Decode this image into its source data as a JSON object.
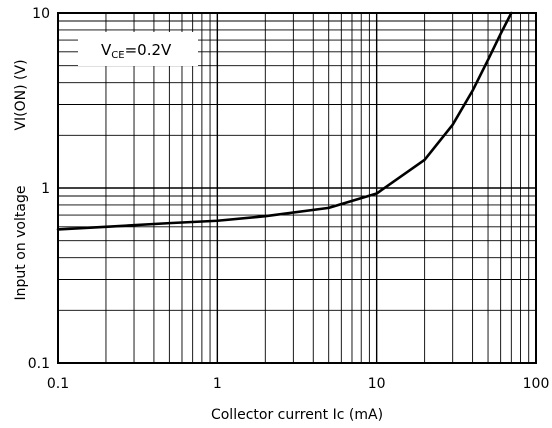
{
  "chart_data": {
    "type": "line",
    "title": "",
    "xlabel": "Collector current Ic (mA)",
    "ylabel": "Input on voltage",
    "ylabel_symbol": "VI(ON) (V)",
    "x_scale": "log",
    "y_scale": "log",
    "xlim": [
      0.1,
      100
    ],
    "ylim": [
      0.1,
      10
    ],
    "x_tick_labels": [
      "0.1",
      "1",
      "10",
      "100"
    ],
    "y_tick_labels": [
      "0.1",
      "1",
      "10"
    ],
    "grid": true,
    "legend": {
      "main": "V",
      "sub": "CE",
      "rest": "=0.2V",
      "placement": "top-left"
    },
    "series": [
      {
        "name": "VCE=0.2V",
        "color": "#000000",
        "x": [
          0.1,
          0.2,
          0.5,
          1,
          2,
          5,
          10,
          20,
          30,
          40,
          50,
          60,
          70
        ],
        "y": [
          0.58,
          0.6,
          0.63,
          0.65,
          0.69,
          0.77,
          0.93,
          1.45,
          2.3,
          3.6,
          5.4,
          7.6,
          10
        ]
      }
    ]
  }
}
